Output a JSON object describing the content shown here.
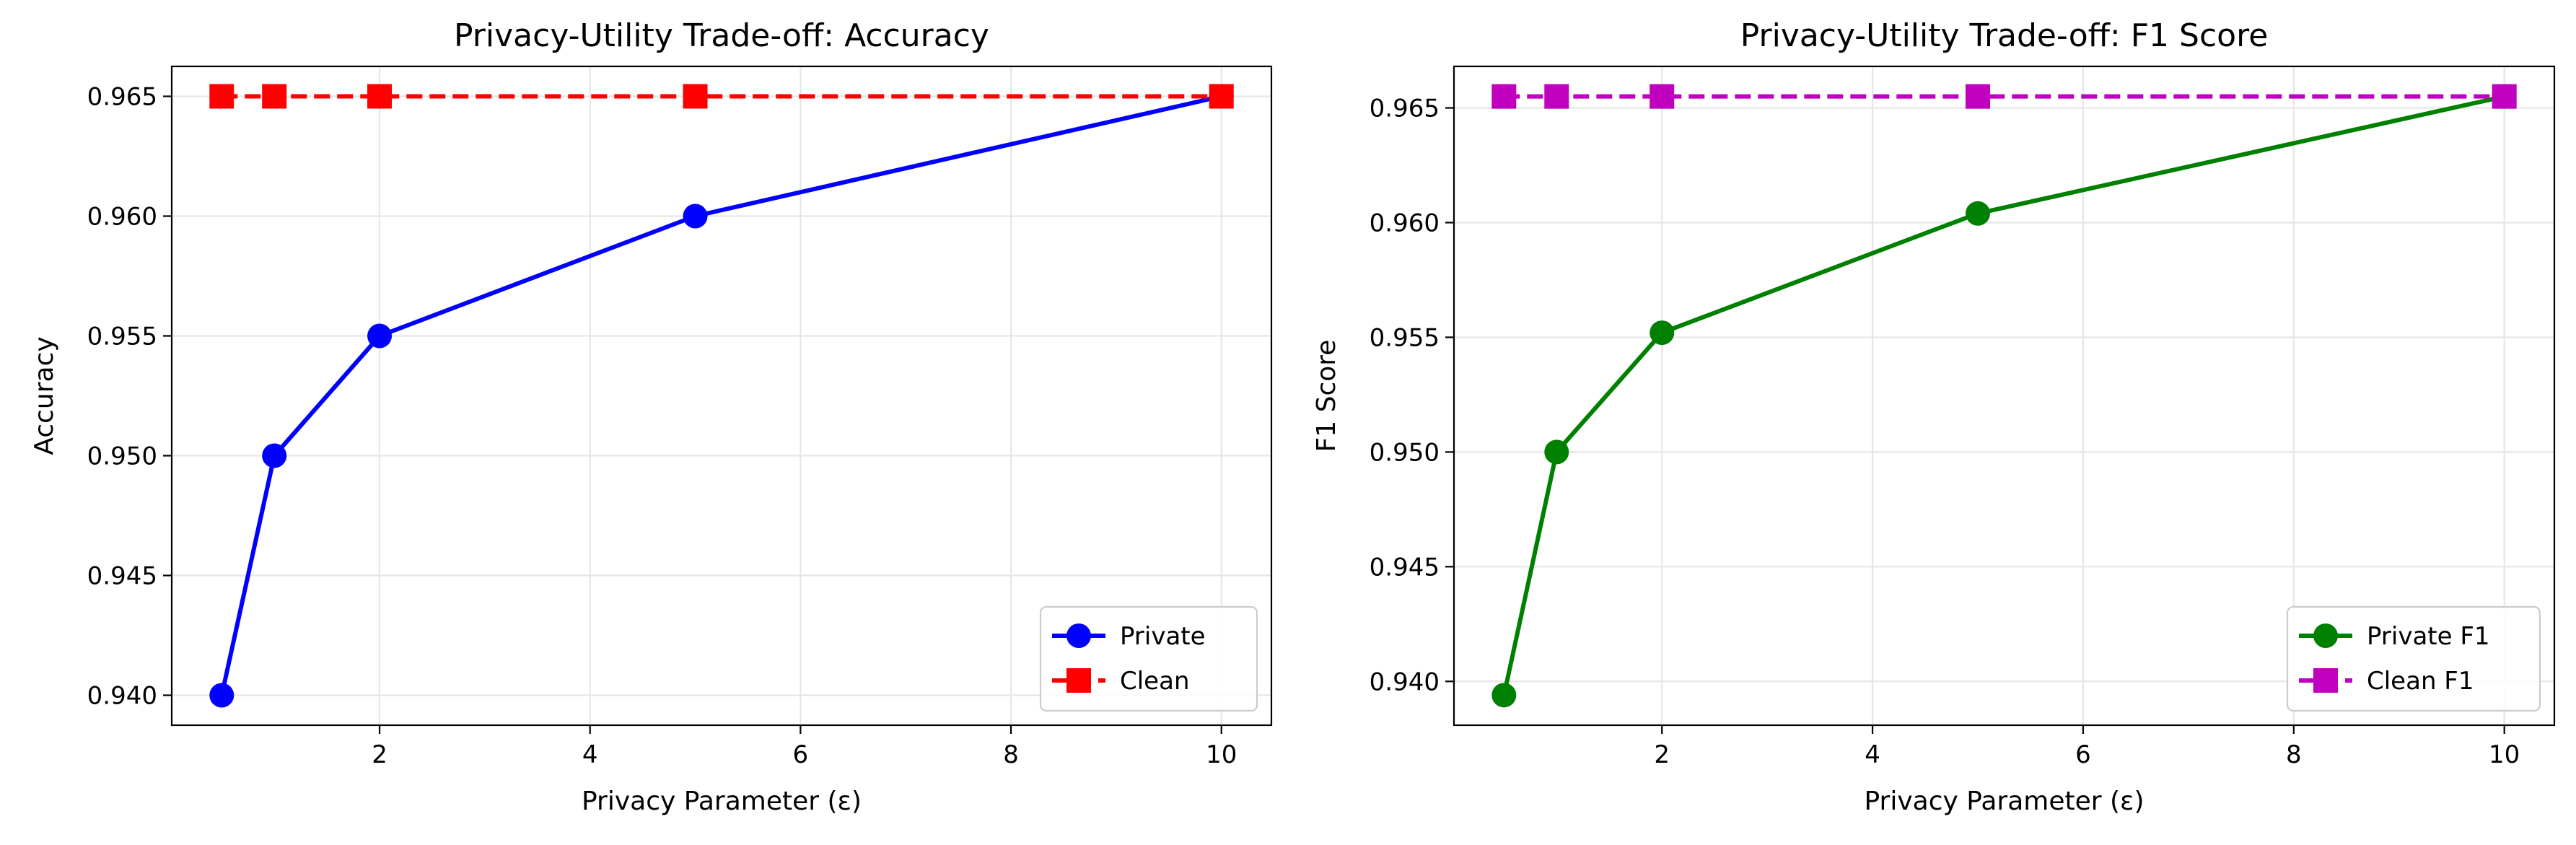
{
  "chart_data": [
    {
      "type": "line",
      "title": "Privacy-Utility Trade-off: Accuracy",
      "xlabel": "Privacy Parameter (ε)",
      "ylabel": "Accuracy",
      "xlim": [
        0.025,
        10.475
      ],
      "ylim": [
        0.93875,
        0.96625
      ],
      "xticks": [
        2,
        4,
        6,
        8,
        10
      ],
      "yticks": [
        0.94,
        0.945,
        0.95,
        0.955,
        0.96,
        0.965
      ],
      "ytick_decimals": 3,
      "grid": true,
      "legend_position": "lower right",
      "series": [
        {
          "name": "Private",
          "x": [
            0.5,
            1,
            2,
            5,
            10
          ],
          "y": [
            0.94,
            0.95,
            0.955,
            0.96,
            0.965
          ],
          "color": "#0000ff",
          "marker": "circle",
          "linestyle": "solid"
        },
        {
          "name": "Clean",
          "x": [
            0.5,
            1,
            2,
            5,
            10
          ],
          "y": [
            0.965,
            0.965,
            0.965,
            0.965,
            0.965
          ],
          "color": "#ff0000",
          "marker": "square",
          "linestyle": "dashed"
        }
      ]
    },
    {
      "type": "line",
      "title": "Privacy-Utility Trade-off: F1 Score",
      "xlabel": "Privacy Parameter (ε)",
      "ylabel": "F1 Score",
      "xlim": [
        0.025,
        10.475
      ],
      "ylim": [
        0.93809,
        0.96681
      ],
      "xticks": [
        2,
        4,
        6,
        8,
        10
      ],
      "yticks": [
        0.94,
        0.945,
        0.95,
        0.955,
        0.96,
        0.965
      ],
      "ytick_decimals": 3,
      "grid": true,
      "legend_position": "lower right",
      "series": [
        {
          "name": "Private F1",
          "x": [
            0.5,
            1,
            2,
            5,
            10
          ],
          "y": [
            0.9394,
            0.95,
            0.9552,
            0.9604,
            0.9655
          ],
          "color": "#008000",
          "marker": "circle",
          "linestyle": "solid"
        },
        {
          "name": "Clean F1",
          "x": [
            0.5,
            1,
            2,
            5,
            10
          ],
          "y": [
            0.9655,
            0.9655,
            0.9655,
            0.9655,
            0.9655
          ],
          "color": "#bf00bf",
          "marker": "square",
          "linestyle": "dashed"
        }
      ]
    }
  ]
}
